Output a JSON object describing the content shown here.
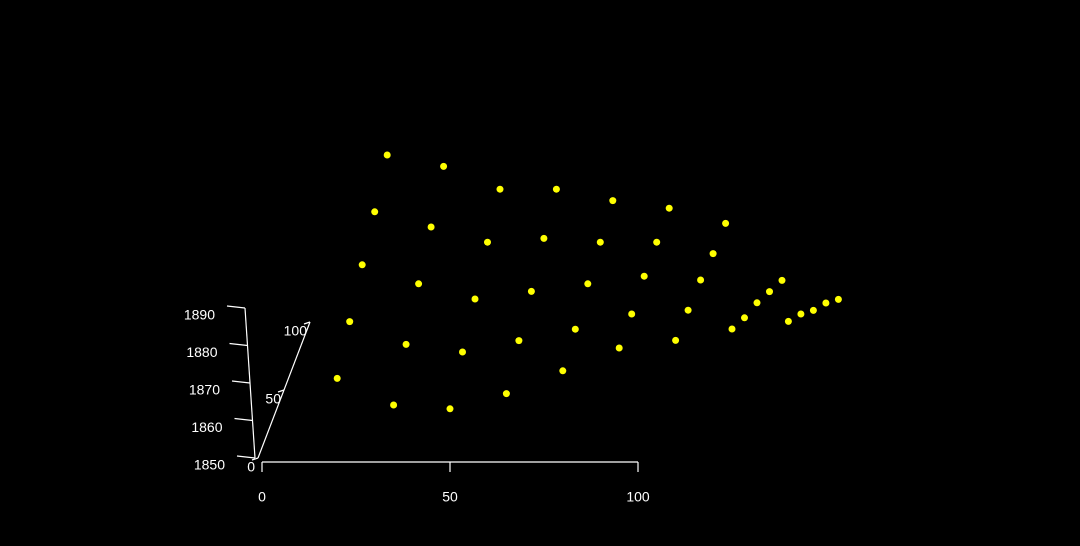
{
  "chart_data": {
    "type": "scatter3d",
    "color": "#ffff00",
    "x": [
      20,
      20,
      20,
      20,
      20,
      35,
      35,
      35,
      35,
      35,
      50,
      50,
      50,
      50,
      50,
      65,
      65,
      65,
      65,
      65,
      80,
      80,
      80,
      80,
      80,
      95,
      95,
      95,
      95,
      95,
      110,
      110,
      110,
      110,
      110,
      125,
      125,
      125,
      125,
      125,
      140,
      140,
      140,
      140,
      140
    ],
    "y": [
      0,
      25,
      50,
      75,
      100,
      0,
      25,
      50,
      75,
      100,
      0,
      25,
      50,
      75,
      100,
      0,
      25,
      50,
      75,
      100,
      0,
      25,
      50,
      75,
      100,
      0,
      25,
      50,
      75,
      100,
      0,
      25,
      50,
      75,
      100,
      0,
      25,
      50,
      75,
      100,
      0,
      25,
      50,
      75,
      100
    ],
    "z": [
      1872,
      1878,
      1884,
      1889,
      1895,
      1865,
      1872,
      1879,
      1885,
      1892,
      1864,
      1870,
      1875,
      1881,
      1886,
      1868,
      1873,
      1877,
      1882,
      1886,
      1874,
      1876,
      1879,
      1881,
      1883,
      1880,
      1880,
      1881,
      1881,
      1881,
      1882,
      1881,
      1880,
      1878,
      1877,
      1885,
      1879,
      1874,
      1868,
      1862,
      1887,
      1880,
      1872,
      1865,
      1857
    ],
    "xlim": [
      0,
      100
    ],
    "xticks": [
      0,
      50,
      100
    ],
    "ylim": [
      0,
      100
    ],
    "yticks": [
      0,
      50,
      100
    ],
    "zlim": [
      1850,
      1890
    ],
    "zticks": [
      1850,
      1860,
      1870,
      1880,
      1890
    ]
  }
}
